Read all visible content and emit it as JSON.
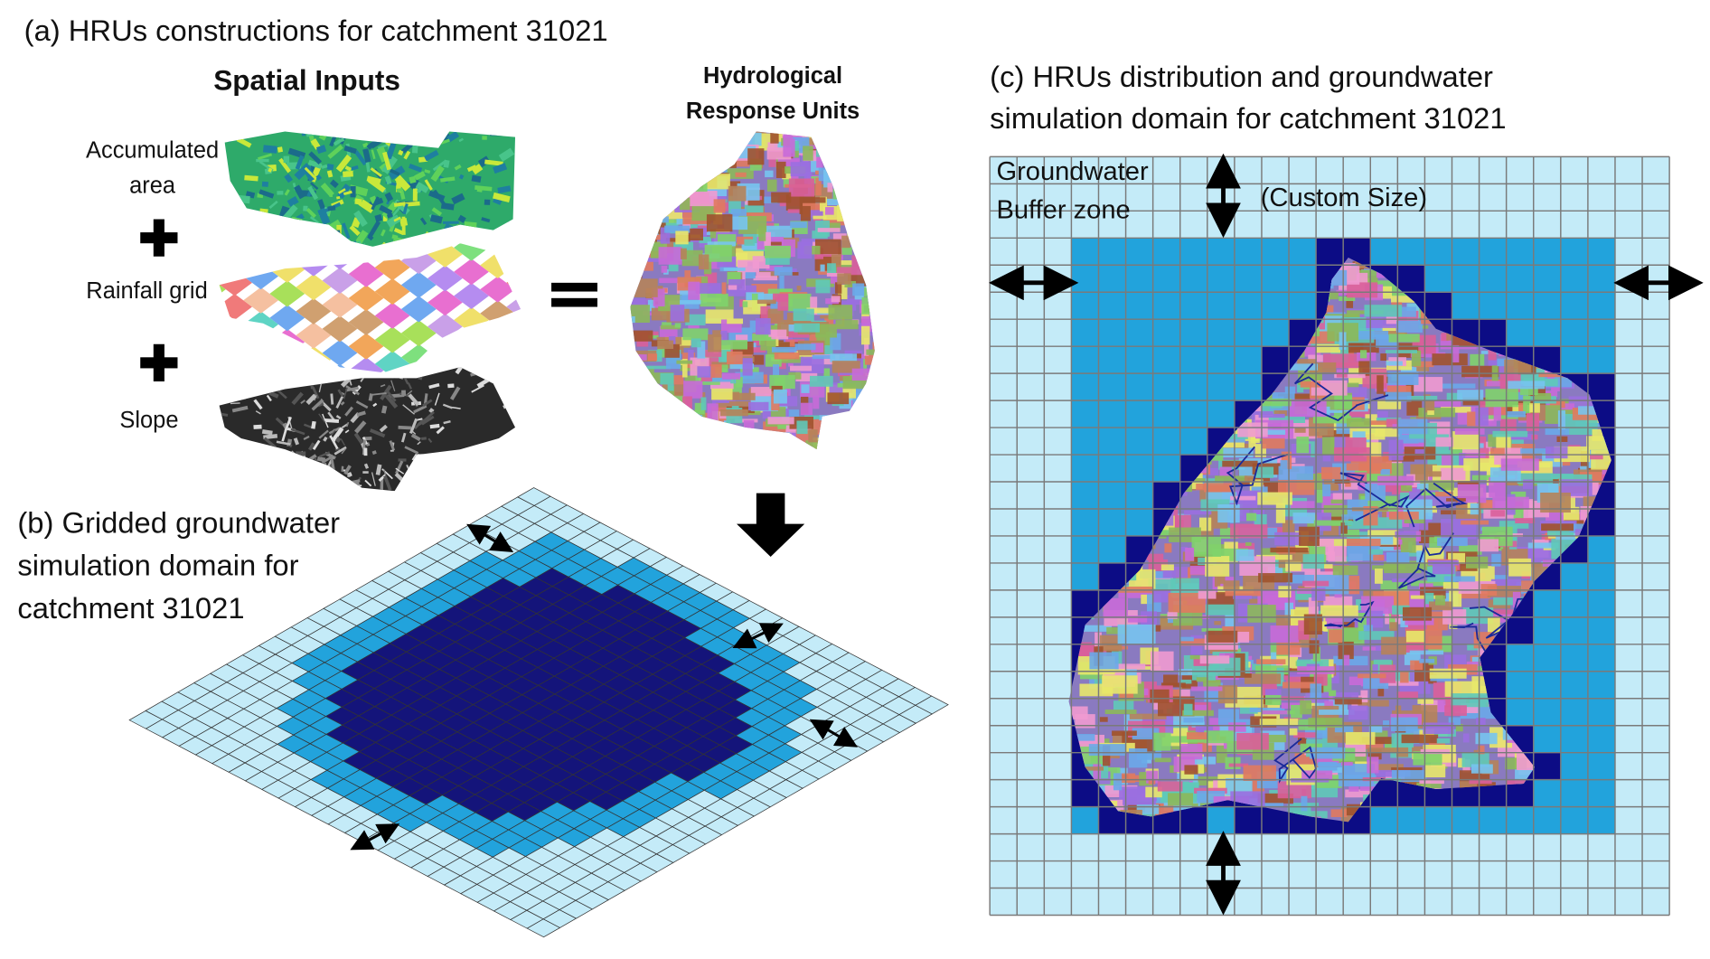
{
  "panel_a": {
    "title": "(a) HRUs constructions for catchment 31021",
    "inputs_heading": "Spatial Inputs",
    "inputs": [
      [
        "Accumulated",
        "area"
      ],
      [
        "Rainfall grid"
      ],
      [
        "Slope"
      ]
    ],
    "output_heading": [
      "Hydrological",
      "Response Units"
    ]
  },
  "panel_b": {
    "title": [
      "(b) Gridded groundwater",
      "simulation domain for",
      "catchment 31021"
    ]
  },
  "panel_c": {
    "title": [
      "(c) HRUs distribution and groundwater",
      "simulation domain for catchment 31021"
    ],
    "buffer_label": [
      "Groundwater",
      "Buffer zone"
    ],
    "size_label": "(Custom Size)"
  }
}
